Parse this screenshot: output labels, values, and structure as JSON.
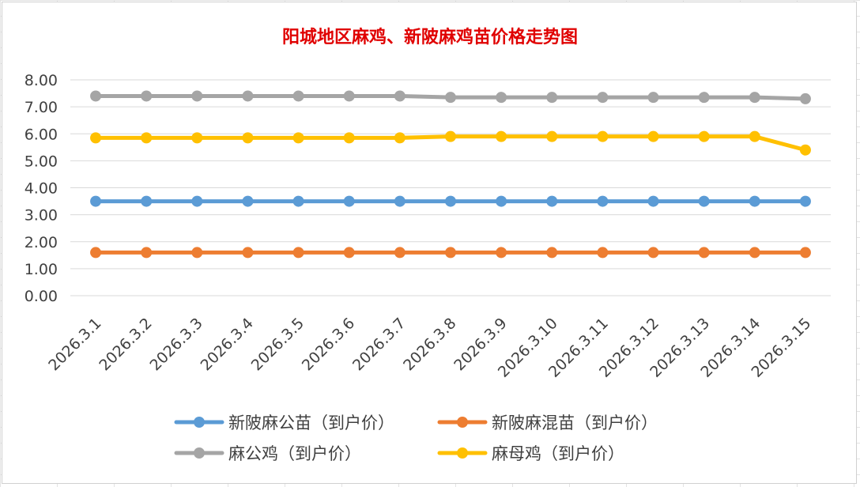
{
  "chart_data": {
    "type": "line",
    "title": "阳城地区麻鸡、新陂麻鸡苗价格走势图",
    "xlabel": "",
    "ylabel": "",
    "categories": [
      "2026.3.1",
      "2026.3.2",
      "2026.3.3",
      "2026.3.4",
      "2026.3.5",
      "2026.3.6",
      "2026.3.7",
      "2026.3.8",
      "2026.3.9",
      "2026.3.10",
      "2026.3.11",
      "2026.3.12",
      "2026.3.13",
      "2026.3.14",
      "2026.3.15"
    ],
    "ylim": [
      0,
      8
    ],
    "yticks": [
      "0.00",
      "1.00",
      "2.00",
      "3.00",
      "4.00",
      "5.00",
      "6.00",
      "7.00",
      "8.00"
    ],
    "grid": true,
    "legend_position": "bottom",
    "series": [
      {
        "name": "新陂麻公苗（到户价）",
        "color": "#5b9bd5",
        "values": [
          3.5,
          3.5,
          3.5,
          3.5,
          3.5,
          3.5,
          3.5,
          3.5,
          3.5,
          3.5,
          3.5,
          3.5,
          3.5,
          3.5,
          3.5
        ]
      },
      {
        "name": "新陂麻混苗（到户价）",
        "color": "#ed7d31",
        "values": [
          1.6,
          1.6,
          1.6,
          1.6,
          1.6,
          1.6,
          1.6,
          1.6,
          1.6,
          1.6,
          1.6,
          1.6,
          1.6,
          1.6,
          1.6
        ]
      },
      {
        "name": "麻公鸡（到户价）",
        "color": "#a5a5a5",
        "values": [
          7.4,
          7.4,
          7.4,
          7.4,
          7.4,
          7.4,
          7.4,
          7.35,
          7.35,
          7.35,
          7.35,
          7.35,
          7.35,
          7.35,
          7.3
        ]
      },
      {
        "name": "麻母鸡（到户价）",
        "color": "#ffc000",
        "values": [
          5.85,
          5.85,
          5.85,
          5.85,
          5.85,
          5.85,
          5.85,
          5.9,
          5.9,
          5.9,
          5.9,
          5.9,
          5.9,
          5.9,
          5.4
        ]
      }
    ]
  }
}
